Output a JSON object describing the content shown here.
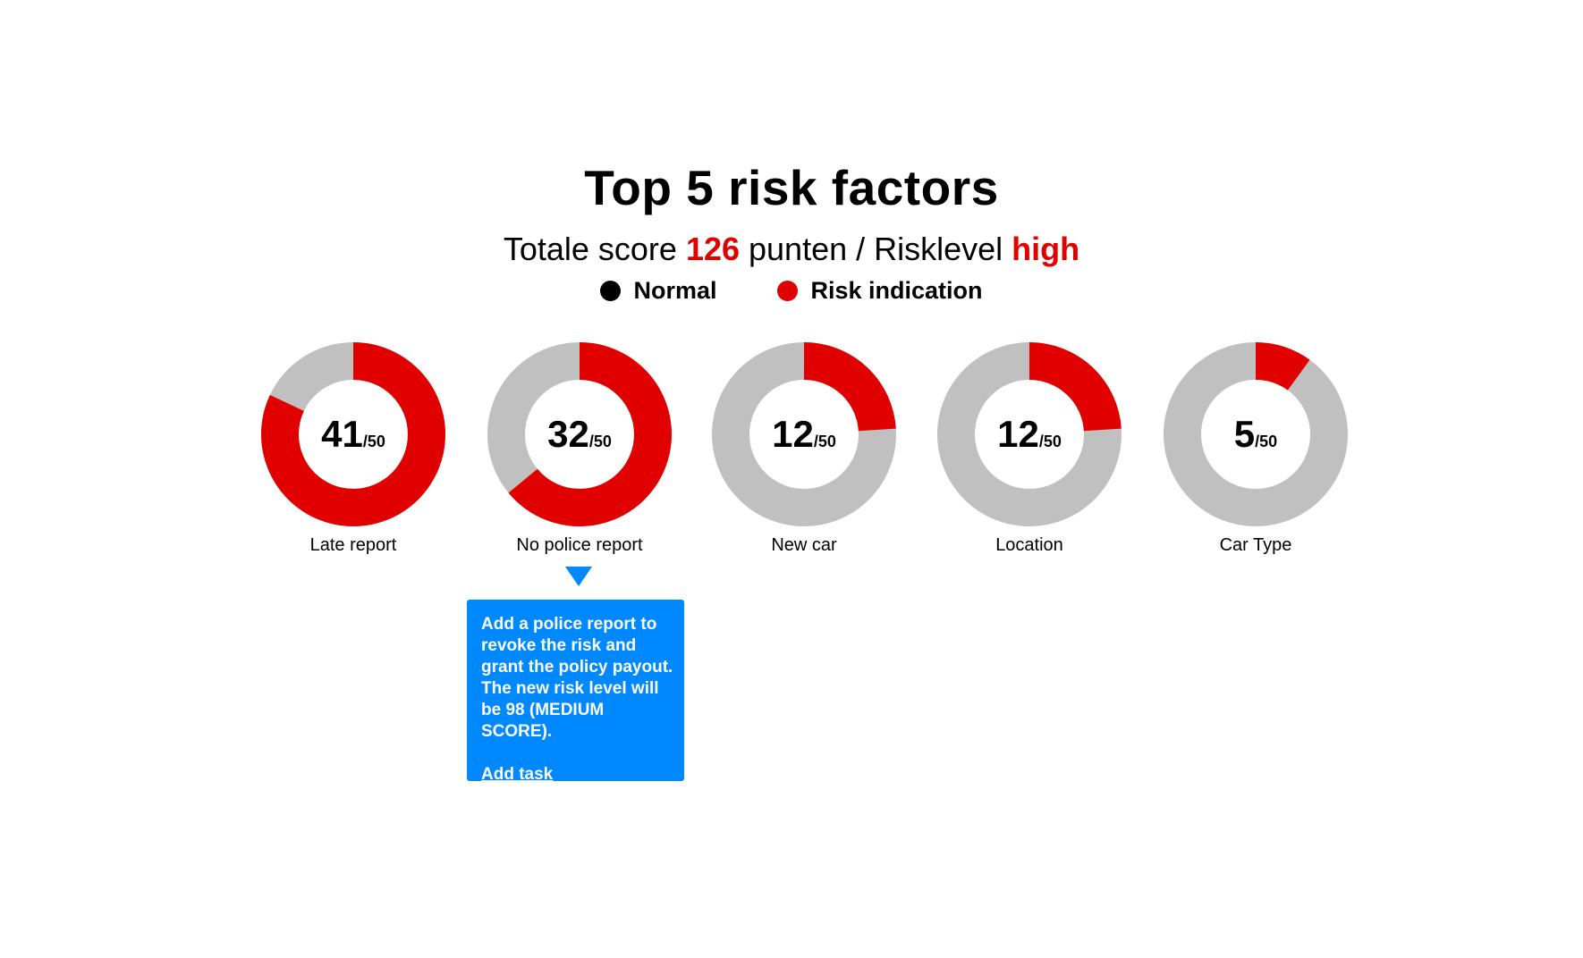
{
  "title": "Top 5 risk factors",
  "subtitle": {
    "prefix": "Totale score ",
    "score": "126",
    "middle": " punten / Risklevel ",
    "level": "high"
  },
  "legend": [
    {
      "label": "Normal",
      "color": "#000000"
    },
    {
      "label": "Risk indication",
      "color": "#e10000"
    }
  ],
  "colors": {
    "risk": "#e10000",
    "remainder": "#c0c0c0",
    "accent": "#e10000",
    "tooltip_bg": "#0088ff"
  },
  "chart_data": {
    "type": "pie",
    "max": 50,
    "max_label": "/50",
    "categories": [
      "Late report",
      "No police report",
      "New car",
      "Location",
      "Car Type"
    ],
    "values": [
      41,
      32,
      12,
      12,
      5
    ]
  },
  "tooltip": {
    "text": "Add a police report to revoke the risk and grant the policy payout. The new risk level will be 98 (MEDIUM SCORE).",
    "link": "Add task"
  }
}
